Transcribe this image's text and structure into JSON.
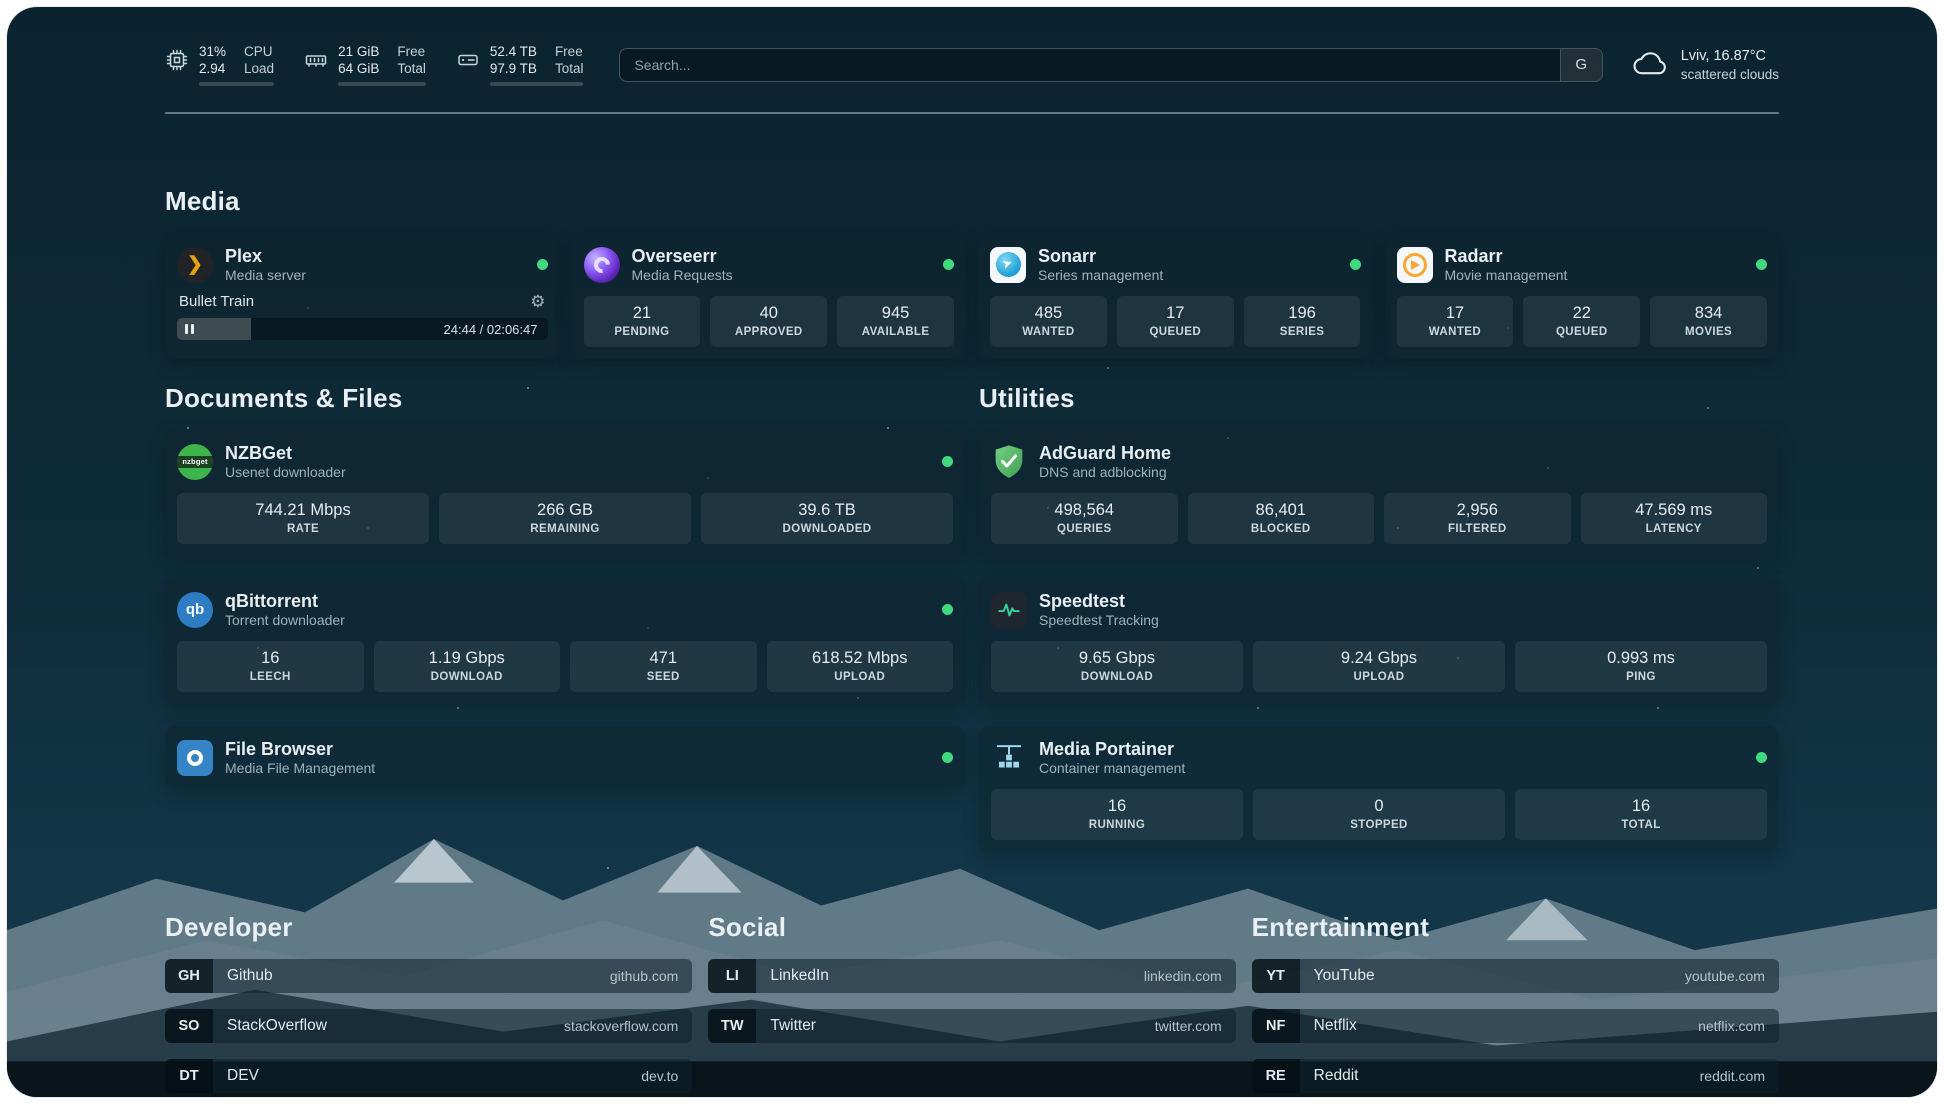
{
  "colors": {
    "status_online": "#41d97d",
    "accent_amber": "#e5a00d",
    "search_border": "#5f7683"
  },
  "topbar": {
    "cpu": {
      "percent": "31%",
      "load": "2.94",
      "label_top": "CPU",
      "label_bottom": "Load",
      "bar": 31
    },
    "memory": {
      "free": "21 GiB",
      "total": "64 GiB",
      "label_top": "Free",
      "label_bottom": "Total",
      "bar": 67
    },
    "disk": {
      "free": "52.4 TB",
      "total": "97.9 TB",
      "label_top": "Free",
      "label_bottom": "Total",
      "bar": 46
    },
    "search": {
      "placeholder": "Search...",
      "button": "G"
    },
    "weather": {
      "location": "Lviv, 16.87°C",
      "condition": "scattered clouds"
    }
  },
  "sections": {
    "media": {
      "title": "Media",
      "plex": {
        "name": "Plex",
        "subtitle": "Media server",
        "now_playing": "Bullet Train",
        "time": "24:44 / 02:06:47",
        "progress": 20
      },
      "overseerr": {
        "name": "Overseerr",
        "subtitle": "Media Requests",
        "stats": [
          {
            "value": "21",
            "label": "PENDING"
          },
          {
            "value": "40",
            "label": "APPROVED"
          },
          {
            "value": "945",
            "label": "AVAILABLE"
          }
        ]
      },
      "sonarr": {
        "name": "Sonarr",
        "subtitle": "Series management",
        "stats": [
          {
            "value": "485",
            "label": "WANTED"
          },
          {
            "value": "17",
            "label": "QUEUED"
          },
          {
            "value": "196",
            "label": "SERIES"
          }
        ]
      },
      "radarr": {
        "name": "Radarr",
        "subtitle": "Movie management",
        "stats": [
          {
            "value": "17",
            "label": "WANTED"
          },
          {
            "value": "22",
            "label": "QUEUED"
          },
          {
            "value": "834",
            "label": "MOVIES"
          }
        ]
      }
    },
    "documents": {
      "title": "Documents & Files",
      "nzbget": {
        "name": "NZBGet",
        "subtitle": "Usenet downloader",
        "stats": [
          {
            "value": "744.21 Mbps",
            "label": "RATE"
          },
          {
            "value": "266 GB",
            "label": "REMAINING"
          },
          {
            "value": "39.6 TB",
            "label": "DOWNLOADED"
          }
        ]
      },
      "qbittorrent": {
        "name": "qBittorrent",
        "subtitle": "Torrent downloader",
        "stats": [
          {
            "value": "16",
            "label": "LEECH"
          },
          {
            "value": "1.19 Gbps",
            "label": "DOWNLOAD"
          },
          {
            "value": "471",
            "label": "SEED"
          },
          {
            "value": "618.52 Mbps",
            "label": "UPLOAD"
          }
        ]
      },
      "filebrowser": {
        "name": "File Browser",
        "subtitle": "Media File Management"
      }
    },
    "utilities": {
      "title": "Utilities",
      "adguard": {
        "name": "AdGuard Home",
        "subtitle": "DNS and adblocking",
        "stats": [
          {
            "value": "498,564",
            "label": "QUERIES"
          },
          {
            "value": "86,401",
            "label": "BLOCKED"
          },
          {
            "value": "2,956",
            "label": "FILTERED"
          },
          {
            "value": "47.569 ms",
            "label": "LATENCY"
          }
        ]
      },
      "speedtest": {
        "name": "Speedtest",
        "subtitle": "Speedtest Tracking",
        "stats": [
          {
            "value": "9.65 Gbps",
            "label": "DOWNLOAD"
          },
          {
            "value": "9.24 Gbps",
            "label": "UPLOAD"
          },
          {
            "value": "0.993 ms",
            "label": "PING"
          }
        ]
      },
      "portainer": {
        "name": "Media Portainer",
        "subtitle": "Container management",
        "stats": [
          {
            "value": "16",
            "label": "RUNNING"
          },
          {
            "value": "0",
            "label": "STOPPED"
          },
          {
            "value": "16",
            "label": "TOTAL"
          }
        ]
      }
    }
  },
  "bookmarks": {
    "developer": {
      "title": "Developer",
      "items": [
        {
          "abbr": "GH",
          "name": "Github",
          "url": "github.com"
        },
        {
          "abbr": "SO",
          "name": "StackOverflow",
          "url": "stackoverflow.com"
        },
        {
          "abbr": "DT",
          "name": "DEV",
          "url": "dev.to"
        }
      ]
    },
    "social": {
      "title": "Social",
      "items": [
        {
          "abbr": "LI",
          "name": "LinkedIn",
          "url": "linkedin.com"
        },
        {
          "abbr": "TW",
          "name": "Twitter",
          "url": "twitter.com"
        }
      ]
    },
    "entertainment": {
      "title": "Entertainment",
      "items": [
        {
          "abbr": "YT",
          "name": "YouTube",
          "url": "youtube.com"
        },
        {
          "abbr": "NF",
          "name": "Netflix",
          "url": "netflix.com"
        },
        {
          "abbr": "RE",
          "name": "Reddit",
          "url": "reddit.com"
        }
      ]
    }
  }
}
